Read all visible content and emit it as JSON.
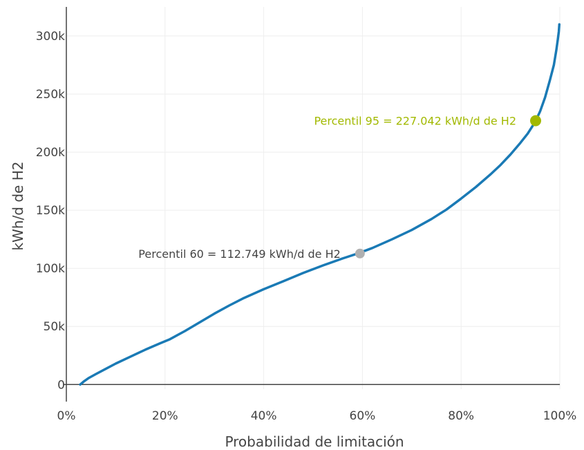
{
  "chart_data": {
    "type": "line",
    "title": "",
    "xlabel": "Probabilidad de limitación",
    "ylabel": "kWh/d de H2",
    "xlim": [
      0,
      100
    ],
    "ylim": [
      -4000,
      325000
    ],
    "grid": true,
    "x_ticks": [
      0,
      20,
      40,
      60,
      80,
      100
    ],
    "x_tick_labels": [
      "0%",
      "20%",
      "40%",
      "60%",
      "80%",
      "100%"
    ],
    "y_ticks": [
      0,
      50000,
      100000,
      150000,
      200000,
      250000,
      300000
    ],
    "y_tick_labels": [
      "0",
      "50k",
      "100k",
      "150k",
      "200k",
      "250k",
      "300k"
    ],
    "series": [
      {
        "color": "#1a7ab5",
        "x": [
          2.8,
          3.5,
          4.5,
          6,
          8,
          10,
          13,
          16,
          19,
          21,
          24,
          27,
          30,
          33,
          36,
          40,
          44,
          48,
          52,
          56,
          59,
          62,
          66,
          70,
          74,
          77,
          80,
          83,
          86,
          88,
          90,
          92,
          93.5,
          95,
          96,
          97,
          98,
          98.8,
          99.3,
          99.6,
          99.8,
          99.9
        ],
        "y": [
          0,
          2500,
          5500,
          9000,
          13500,
          18000,
          24000,
          30000,
          35500,
          39000,
          46000,
          53500,
          61000,
          68000,
          74500,
          82000,
          89000,
          96000,
          102500,
          108500,
          112700,
          117500,
          125000,
          133000,
          142500,
          150500,
          160000,
          170000,
          181000,
          189000,
          198000,
          208000,
          216000,
          226000,
          235000,
          247000,
          262000,
          275000,
          288000,
          297000,
          304000,
          310000
        ]
      }
    ],
    "points": [
      {
        "x": 59.5,
        "y": 112749,
        "color": "#b0b0b0"
      },
      {
        "x": 95.1,
        "y": 227042,
        "color": "#a2b900"
      }
    ],
    "annotations": [
      {
        "text": "Percentil 60 = 112.749 kWh/d de H2",
        "x": 59.5,
        "y": 112749,
        "color": "#444444"
      },
      {
        "text": "Percentil 95 = 227.042 kWh/d de H2",
        "x": 95.1,
        "y": 227042,
        "color": "#a2b900"
      }
    ]
  }
}
